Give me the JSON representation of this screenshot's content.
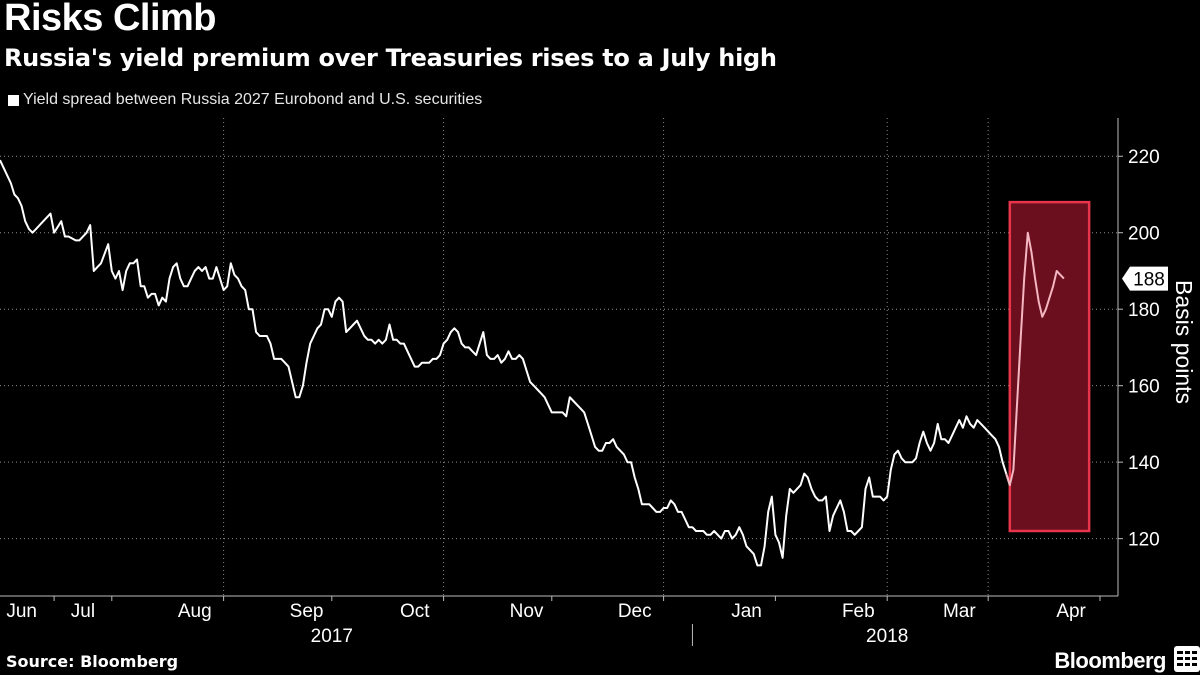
{
  "header": {
    "title": "Risks Climb",
    "subtitle": "Russia's yield premium over Treasuries rises to a July high",
    "legend": "Yield spread between Russia 2027 Eurobond and U.S. securities"
  },
  "footer": {
    "source": "Source: Bloomberg",
    "brand": "Bloomberg"
  },
  "colors": {
    "background": "#000000",
    "line": "#ffffff",
    "highlight_fill": "#6b0e1e",
    "highlight_border": "#e8354c",
    "grid": "#8a8a8a"
  },
  "chart_data": {
    "type": "line",
    "title": "Risks Climb",
    "subtitle": "Russia's yield premium over Treasuries rises to a July high",
    "ylabel": "Basis points",
    "xlabel": "",
    "ylim": [
      105,
      230
    ],
    "yticks": [
      120,
      140,
      160,
      180,
      200,
      220
    ],
    "last_value_label": "188",
    "month_labels": [
      {
        "label": "Jun",
        "t": 6
      },
      {
        "label": "Jul",
        "t": 23
      },
      {
        "label": "Aug",
        "t": 54
      },
      {
        "label": "Sep",
        "t": 85
      },
      {
        "label": "Oct",
        "t": 115
      },
      {
        "label": "Nov",
        "t": 146
      },
      {
        "label": "Dec",
        "t": 176
      },
      {
        "label": "Jan",
        "t": 207
      },
      {
        "label": "Feb",
        "t": 238
      },
      {
        "label": "Mar",
        "t": 266
      },
      {
        "label": "Apr",
        "t": 297
      }
    ],
    "month_boundaries": [
      15,
      31,
      62,
      92,
      123,
      153,
      184,
      215,
      246,
      274,
      305
    ],
    "year_labels": [
      {
        "label": "2017",
        "t": 92
      },
      {
        "label": "2018",
        "t": 246
      }
    ],
    "year_divider_t": 192,
    "xlim": [
      0,
      310
    ],
    "highlight": {
      "t_start": 280,
      "t_end": 302,
      "y_low": 122,
      "y_high": 208
    },
    "series": [
      {
        "name": "Yield spread between Russia 2027 Eurobond and U.S. securities",
        "points": [
          [
            0,
            219
          ],
          [
            2,
            215
          ],
          [
            3,
            213
          ],
          [
            4,
            210
          ],
          [
            5,
            209
          ],
          [
            6,
            207
          ],
          [
            7,
            203
          ],
          [
            8,
            201
          ],
          [
            9,
            200
          ],
          [
            10,
            201
          ],
          [
            12,
            203
          ],
          [
            14,
            205
          ],
          [
            15,
            200
          ],
          [
            17,
            203
          ],
          [
            18,
            199
          ],
          [
            19,
            199
          ],
          [
            21,
            198
          ],
          [
            22,
            198
          ],
          [
            24,
            200
          ],
          [
            25,
            202
          ],
          [
            26,
            190
          ],
          [
            27,
            191
          ],
          [
            28,
            192
          ],
          [
            30,
            197
          ],
          [
            31,
            190
          ],
          [
            32,
            188
          ],
          [
            33,
            190
          ],
          [
            34,
            185
          ],
          [
            35,
            190
          ],
          [
            36,
            192
          ],
          [
            37,
            192
          ],
          [
            38,
            193
          ],
          [
            39,
            186
          ],
          [
            40,
            186
          ],
          [
            41,
            183
          ],
          [
            42,
            184
          ],
          [
            43,
            184
          ],
          [
            44,
            181
          ],
          [
            45,
            183
          ],
          [
            46,
            182
          ],
          [
            47,
            188
          ],
          [
            48,
            191
          ],
          [
            49,
            192
          ],
          [
            50,
            188
          ],
          [
            51,
            186
          ],
          [
            52,
            186
          ],
          [
            53,
            188
          ],
          [
            54,
            190
          ],
          [
            55,
            191
          ],
          [
            56,
            190
          ],
          [
            57,
            191
          ],
          [
            58,
            188
          ],
          [
            59,
            188
          ],
          [
            60,
            191
          ],
          [
            61,
            188
          ],
          [
            62,
            185
          ],
          [
            63,
            186
          ],
          [
            64,
            192
          ],
          [
            65,
            189
          ],
          [
            66,
            188
          ],
          [
            67,
            186
          ],
          [
            68,
            185
          ],
          [
            69,
            180
          ],
          [
            70,
            180
          ],
          [
            71,
            174
          ],
          [
            72,
            173
          ],
          [
            73,
            173
          ],
          [
            74,
            173
          ],
          [
            75,
            171
          ],
          [
            76,
            167
          ],
          [
            77,
            167
          ],
          [
            78,
            167
          ],
          [
            79,
            166
          ],
          [
            80,
            165
          ],
          [
            81,
            161
          ],
          [
            82,
            157
          ],
          [
            83,
            157
          ],
          [
            84,
            160
          ],
          [
            85,
            166
          ],
          [
            86,
            171
          ],
          [
            87,
            173
          ],
          [
            88,
            175
          ],
          [
            89,
            176
          ],
          [
            90,
            180
          ],
          [
            91,
            180
          ],
          [
            92,
            178
          ],
          [
            93,
            182
          ],
          [
            94,
            183
          ],
          [
            95,
            182
          ],
          [
            96,
            174
          ],
          [
            97,
            175
          ],
          [
            98,
            176
          ],
          [
            99,
            177
          ],
          [
            100,
            175
          ],
          [
            101,
            173
          ],
          [
            102,
            172
          ],
          [
            103,
            172
          ],
          [
            104,
            171
          ],
          [
            105,
            172
          ],
          [
            106,
            171
          ],
          [
            107,
            172
          ],
          [
            108,
            176
          ],
          [
            109,
            172
          ],
          [
            110,
            172
          ],
          [
            111,
            171
          ],
          [
            112,
            171
          ],
          [
            113,
            169
          ],
          [
            114,
            167
          ],
          [
            115,
            165
          ],
          [
            116,
            165
          ],
          [
            117,
            166
          ],
          [
            118,
            166
          ],
          [
            119,
            166
          ],
          [
            120,
            167
          ],
          [
            121,
            167
          ],
          [
            122,
            168
          ],
          [
            123,
            171
          ],
          [
            124,
            172
          ],
          [
            125,
            174
          ],
          [
            126,
            175
          ],
          [
            127,
            174
          ],
          [
            128,
            171
          ],
          [
            129,
            170
          ],
          [
            130,
            170
          ],
          [
            131,
            169
          ],
          [
            132,
            168
          ],
          [
            133,
            171
          ],
          [
            134,
            174
          ],
          [
            135,
            168
          ],
          [
            136,
            167
          ],
          [
            137,
            167
          ],
          [
            138,
            168
          ],
          [
            139,
            166
          ],
          [
            140,
            167
          ],
          [
            141,
            169
          ],
          [
            142,
            167
          ],
          [
            143,
            167
          ],
          [
            144,
            168
          ],
          [
            145,
            167
          ],
          [
            146,
            164
          ],
          [
            147,
            161
          ],
          [
            148,
            160
          ],
          [
            149,
            159
          ],
          [
            150,
            158
          ],
          [
            151,
            157
          ],
          [
            152,
            155
          ],
          [
            153,
            153
          ],
          [
            154,
            153
          ],
          [
            155,
            153
          ],
          [
            156,
            153
          ],
          [
            157,
            152
          ],
          [
            158,
            157
          ],
          [
            159,
            156
          ],
          [
            160,
            155
          ],
          [
            161,
            154
          ],
          [
            162,
            153
          ],
          [
            163,
            150
          ],
          [
            164,
            147
          ],
          [
            165,
            144
          ],
          [
            166,
            143
          ],
          [
            167,
            143
          ],
          [
            168,
            145
          ],
          [
            169,
            145
          ],
          [
            170,
            146
          ],
          [
            171,
            144
          ],
          [
            172,
            143
          ],
          [
            173,
            142
          ],
          [
            174,
            140
          ],
          [
            175,
            140
          ],
          [
            176,
            136
          ],
          [
            177,
            133
          ],
          [
            178,
            129
          ],
          [
            179,
            129
          ],
          [
            180,
            129
          ],
          [
            181,
            128
          ],
          [
            182,
            127
          ],
          [
            183,
            127
          ],
          [
            184,
            128
          ],
          [
            185,
            128
          ],
          [
            186,
            130
          ],
          [
            187,
            129
          ],
          [
            188,
            127
          ],
          [
            189,
            127
          ],
          [
            190,
            125
          ],
          [
            191,
            123
          ],
          [
            192,
            123
          ],
          [
            193,
            122
          ],
          [
            194,
            122
          ],
          [
            195,
            122
          ],
          [
            196,
            121
          ],
          [
            197,
            121
          ],
          [
            198,
            122
          ],
          [
            199,
            121
          ],
          [
            200,
            120
          ],
          [
            201,
            122
          ],
          [
            202,
            122
          ],
          [
            203,
            120
          ],
          [
            204,
            121
          ],
          [
            205,
            123
          ],
          [
            206,
            121
          ],
          [
            207,
            118
          ],
          [
            208,
            117
          ],
          [
            209,
            116
          ],
          [
            210,
            113
          ],
          [
            211,
            113
          ],
          [
            212,
            118
          ],
          [
            213,
            127
          ],
          [
            214,
            131
          ],
          [
            215,
            121
          ],
          [
            216,
            119
          ],
          [
            217,
            115
          ],
          [
            218,
            126
          ],
          [
            219,
            133
          ],
          [
            220,
            132
          ],
          [
            221,
            133
          ],
          [
            222,
            134
          ],
          [
            223,
            137
          ],
          [
            224,
            136
          ],
          [
            225,
            133
          ],
          [
            226,
            131
          ],
          [
            227,
            130
          ],
          [
            228,
            130
          ],
          [
            229,
            131
          ],
          [
            230,
            122
          ],
          [
            231,
            126
          ],
          [
            232,
            128
          ],
          [
            233,
            130
          ],
          [
            234,
            127
          ],
          [
            235,
            122
          ],
          [
            236,
            122
          ],
          [
            237,
            121
          ],
          [
            238,
            122
          ],
          [
            239,
            123
          ],
          [
            240,
            133
          ],
          [
            241,
            136
          ],
          [
            242,
            131
          ],
          [
            243,
            131
          ],
          [
            244,
            131
          ],
          [
            245,
            130
          ],
          [
            246,
            131
          ],
          [
            247,
            138
          ],
          [
            248,
            142
          ],
          [
            249,
            143
          ],
          [
            250,
            141
          ],
          [
            251,
            140
          ],
          [
            252,
            140
          ],
          [
            253,
            140
          ],
          [
            254,
            141
          ],
          [
            255,
            145
          ],
          [
            256,
            148
          ],
          [
            257,
            145
          ],
          [
            258,
            143
          ],
          [
            259,
            145
          ],
          [
            260,
            150
          ],
          [
            261,
            146
          ],
          [
            262,
            146
          ],
          [
            263,
            145
          ],
          [
            264,
            147
          ],
          [
            265,
            149
          ],
          [
            266,
            151
          ],
          [
            267,
            149
          ],
          [
            268,
            152
          ],
          [
            269,
            150
          ],
          [
            270,
            149
          ],
          [
            271,
            151
          ],
          [
            272,
            150
          ],
          [
            273,
            149
          ],
          [
            274,
            148
          ],
          [
            275,
            147
          ],
          [
            276,
            146
          ],
          [
            277,
            144
          ],
          [
            278,
            140
          ],
          [
            279,
            137
          ],
          [
            280,
            134
          ],
          [
            281,
            138
          ],
          [
            282,
            155
          ],
          [
            283,
            172
          ],
          [
            284,
            188
          ],
          [
            285,
            200
          ],
          [
            286,
            195
          ],
          [
            287,
            188
          ],
          [
            288,
            182
          ],
          [
            289,
            178
          ],
          [
            290,
            180
          ],
          [
            291,
            183
          ],
          [
            292,
            186
          ],
          [
            293,
            190
          ],
          [
            294,
            189
          ],
          [
            295,
            188
          ]
        ]
      }
    ]
  }
}
